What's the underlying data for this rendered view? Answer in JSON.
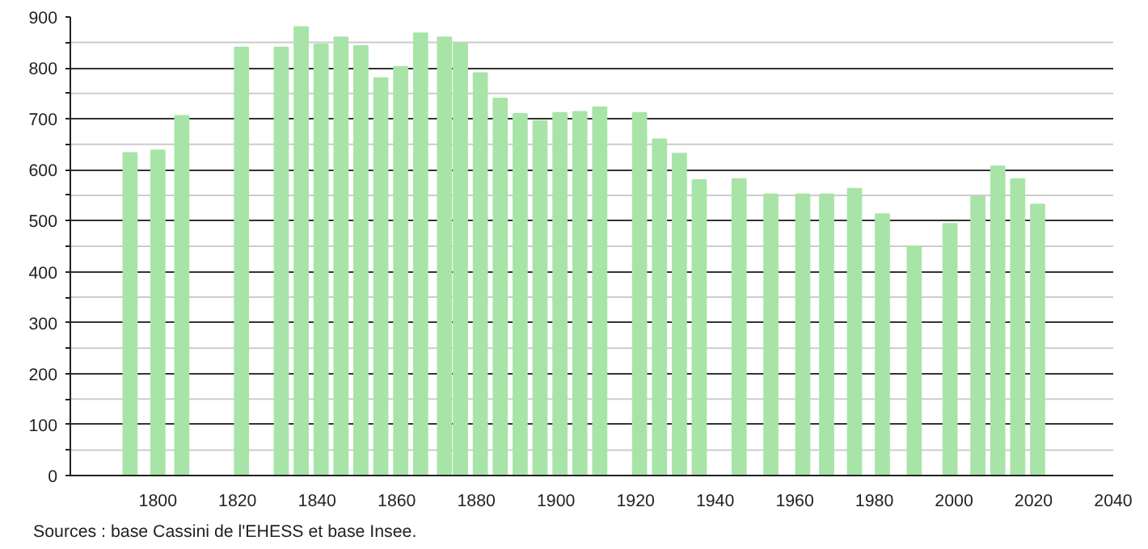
{
  "chart_data": {
    "type": "bar",
    "x": [
      1793,
      1800,
      1806,
      1821,
      1831,
      1836,
      1841,
      1846,
      1851,
      1856,
      1861,
      1866,
      1872,
      1876,
      1881,
      1886,
      1891,
      1896,
      1901,
      1906,
      1911,
      1921,
      1926,
      1931,
      1936,
      1946,
      1954,
      1962,
      1968,
      1975,
      1982,
      1990,
      1999,
      2006,
      2011,
      2016,
      2021
    ],
    "values": [
      633,
      638,
      706,
      840,
      840,
      880,
      846,
      860,
      843,
      780,
      802,
      868,
      860,
      848,
      790,
      740,
      710,
      696,
      712,
      714,
      723,
      712,
      660,
      632,
      580,
      582,
      552,
      552,
      552,
      563,
      513,
      450,
      494,
      547,
      607,
      582,
      532
    ],
    "color": "#a8e4a8",
    "xlim": [
      1778,
      2040
    ],
    "xticks": [
      1800,
      1820,
      1840,
      1860,
      1880,
      1900,
      1920,
      1940,
      1960,
      1980,
      2000,
      2020,
      2040
    ],
    "ylim": [
      0,
      900
    ],
    "yticks": [
      0,
      {
        "value": 50,
        "label": null
      },
      100,
      {
        "value": 150,
        "label": null
      },
      200,
      {
        "value": 250,
        "label": null
      },
      300,
      {
        "value": 350,
        "label": null
      },
      400,
      {
        "value": 450,
        "label": null
      },
      500,
      {
        "value": 550,
        "label": null
      },
      600,
      {
        "value": 650,
        "label": null
      },
      700,
      {
        "value": 750,
        "label": null
      },
      800,
      {
        "value": 850,
        "label": null
      },
      900
    ],
    "grid": "y",
    "annotations": [
      "Sources : base Cassini de l'EHESS et base Insee."
    ]
  }
}
